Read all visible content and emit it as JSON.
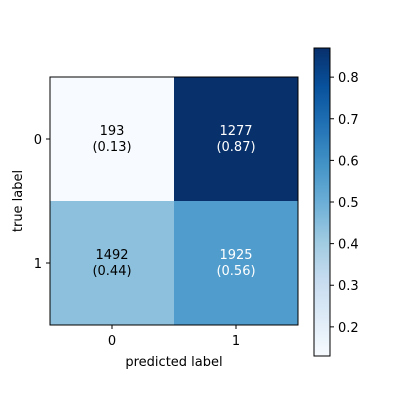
{
  "chart_data": {
    "type": "heatmap",
    "title": "",
    "xlabel": "predicted label",
    "ylabel": "true label",
    "x_categories": [
      "0",
      "1"
    ],
    "y_categories": [
      "0",
      "1"
    ],
    "counts": [
      [
        193,
        1277
      ],
      [
        1492,
        1925
      ]
    ],
    "normalized": [
      [
        0.13,
        0.87
      ],
      [
        0.44,
        0.56
      ]
    ],
    "cell_labels": [
      [
        {
          "count": "193",
          "fraction": "(0.13)"
        },
        {
          "count": "1277",
          "fraction": "(0.87)"
        }
      ],
      [
        {
          "count": "1492",
          "fraction": "(0.44)"
        },
        {
          "count": "1925",
          "fraction": "(0.56)"
        }
      ]
    ],
    "colormap": "Blues",
    "colormap_stops": [
      "#f7fbff",
      "#deebf7",
      "#c6dbef",
      "#9ecae1",
      "#6baed6",
      "#4292c6",
      "#2171b5",
      "#08519c",
      "#08306b"
    ],
    "text_color_light": "#ffffff",
    "text_color_dark": "#000000",
    "colorbar": {
      "range": [
        0.13,
        0.87
      ],
      "ticks": [
        0.2,
        0.3,
        0.4,
        0.5,
        0.6,
        0.7,
        0.8
      ],
      "tick_labels": [
        "0.2",
        "0.3",
        "0.4",
        "0.5",
        "0.6",
        "0.7",
        "0.8"
      ]
    },
    "grid": false,
    "legend": "none"
  }
}
